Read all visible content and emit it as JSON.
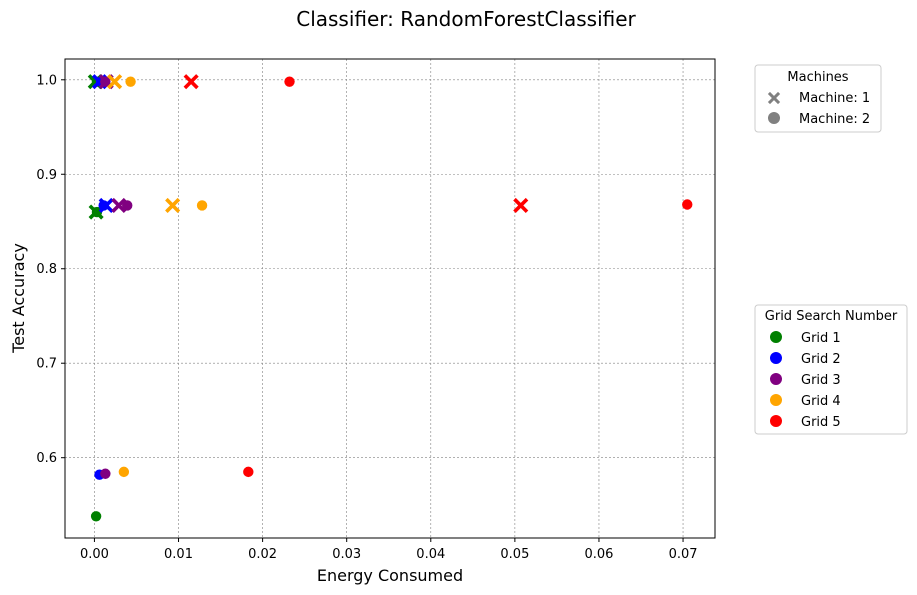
{
  "chart_data": {
    "type": "scatter",
    "title": "Classifier: RandomForestClassifier",
    "xlabel": "Energy Consumed",
    "ylabel": "Test Accuracy",
    "xlim": [
      -0.0035,
      0.0738
    ],
    "ylim": [
      0.515,
      1.022
    ],
    "xticks": [
      0.0,
      0.01,
      0.02,
      0.03,
      0.04,
      0.05,
      0.06,
      0.07
    ],
    "xtick_labels": [
      "0.00",
      "0.01",
      "0.02",
      "0.03",
      "0.04",
      "0.05",
      "0.06",
      "0.07"
    ],
    "yticks": [
      0.6,
      0.7,
      0.8,
      0.9,
      1.0
    ],
    "ytick_labels": [
      "0.6",
      "0.7",
      "0.8",
      "0.9",
      "1.0"
    ],
    "grid": true,
    "legend_machines": {
      "title": "Machines",
      "entries": [
        {
          "label": "Machine: 1",
          "marker": "x"
        },
        {
          "label": "Machine: 2",
          "marker": "o"
        }
      ],
      "placement": "upper-right-outside"
    },
    "legend_grids": {
      "title": "Grid Search Number",
      "entries": [
        {
          "label": "Grid 1",
          "color": "#008000"
        },
        {
          "label": "Grid 2",
          "color": "#0000ff"
        },
        {
          "label": "Grid 3",
          "color": "#800080"
        },
        {
          "label": "Grid 4",
          "color": "#ffa500"
        },
        {
          "label": "Grid 5",
          "color": "#ff0000"
        }
      ],
      "placement": "center-right-outside"
    },
    "series": [
      {
        "grid": "Grid 1",
        "color": "#008000",
        "points": [
          {
            "x": 0.0001,
            "y": 0.998,
            "m": "x"
          },
          {
            "x": 0.0003,
            "y": 0.998,
            "m": "o"
          },
          {
            "x": 0.0002,
            "y": 0.86,
            "m": "x"
          },
          {
            "x": 0.0003,
            "y": 0.86,
            "m": "o"
          },
          {
            "x": 0.0002,
            "y": 0.538,
            "m": "o"
          }
        ]
      },
      {
        "grid": "Grid 2",
        "color": "#0000ff",
        "points": [
          {
            "x": 0.0006,
            "y": 0.998,
            "m": "x"
          },
          {
            "x": 0.0008,
            "y": 0.998,
            "m": "o"
          },
          {
            "x": 0.0014,
            "y": 0.867,
            "m": "x"
          },
          {
            "x": 0.0011,
            "y": 0.867,
            "m": "o"
          },
          {
            "x": 0.0006,
            "y": 0.582,
            "m": "o"
          }
        ]
      },
      {
        "grid": "Grid 3",
        "color": "#800080",
        "points": [
          {
            "x": 0.0014,
            "y": 0.998,
            "m": "x"
          },
          {
            "x": 0.0013,
            "y": 0.998,
            "m": "o"
          },
          {
            "x": 0.0029,
            "y": 0.867,
            "m": "x"
          },
          {
            "x": 0.0039,
            "y": 0.867,
            "m": "o"
          },
          {
            "x": 0.0013,
            "y": 0.583,
            "m": "o"
          }
        ]
      },
      {
        "grid": "Grid 4",
        "color": "#ffa500",
        "points": [
          {
            "x": 0.0024,
            "y": 0.998,
            "m": "x"
          },
          {
            "x": 0.0043,
            "y": 0.998,
            "m": "o"
          },
          {
            "x": 0.0093,
            "y": 0.867,
            "m": "x"
          },
          {
            "x": 0.0128,
            "y": 0.867,
            "m": "o"
          },
          {
            "x": 0.0035,
            "y": 0.585,
            "m": "o"
          }
        ]
      },
      {
        "grid": "Grid 5",
        "color": "#ff0000",
        "points": [
          {
            "x": 0.0115,
            "y": 0.998,
            "m": "x"
          },
          {
            "x": 0.0232,
            "y": 0.998,
            "m": "o"
          },
          {
            "x": 0.0507,
            "y": 0.867,
            "m": "x"
          },
          {
            "x": 0.0705,
            "y": 0.868,
            "m": "o"
          },
          {
            "x": 0.0183,
            "y": 0.585,
            "m": "o"
          }
        ]
      }
    ]
  }
}
